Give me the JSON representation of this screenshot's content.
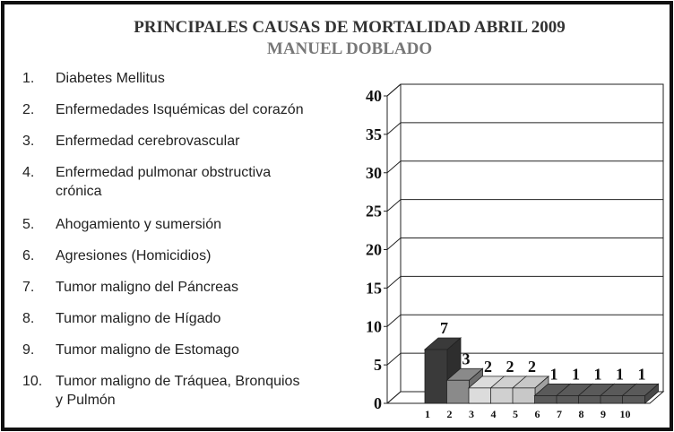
{
  "chart_data": {
    "type": "bar",
    "title": "PRINCIPALES CAUSAS DE MORTALIDAD ABRIL 2009",
    "subtitle": "MANUEL DOBLADO",
    "categories": [
      "1",
      "2",
      "3",
      "4",
      "5",
      "6",
      "7",
      "8",
      "9",
      "10"
    ],
    "values": [
      7,
      3,
      2,
      2,
      2,
      1,
      1,
      1,
      1,
      1
    ],
    "colors": [
      "#3a3a3a",
      "#8a8a8a",
      "#dcdcdc",
      "#d0d0d0",
      "#c8c8c8",
      "#5a5a5a",
      "#5a5a5a",
      "#5a5a5a",
      "#5a5a5a",
      "#5a5a5a"
    ],
    "ylim": [
      0,
      40
    ],
    "yticks": [
      0,
      5,
      10,
      15,
      20,
      25,
      30,
      35,
      40
    ],
    "grid": true,
    "causes": [
      {
        "number": "1.",
        "lines": [
          "Diabetes Mellitus"
        ]
      },
      {
        "number": "2.",
        "lines": [
          "Enfermedades Isquémicas del corazón"
        ]
      },
      {
        "number": "3.",
        "lines": [
          "Enfermedad  cerebrovascular"
        ]
      },
      {
        "number": "4.",
        "lines": [
          "Enfermedad pulmonar obstructiva",
          "crónica"
        ]
      },
      {
        "number": "5.",
        "lines": [
          "Ahogamiento y sumersión"
        ]
      },
      {
        "number": "6.",
        "lines": [
          "Agresiones (Homicidios)"
        ]
      },
      {
        "number": "7.",
        "lines": [
          "Tumor maligno del Páncreas"
        ]
      },
      {
        "number": "8.",
        "lines": [
          "Tumor maligno de Hígado"
        ]
      },
      {
        "number": "9.",
        "lines": [
          "Tumor maligno de Estomago"
        ]
      },
      {
        "number": "10.",
        "lines": [
          "Tumor maligno de Tráquea, Bronquios",
          "y Pulmón"
        ]
      }
    ]
  }
}
